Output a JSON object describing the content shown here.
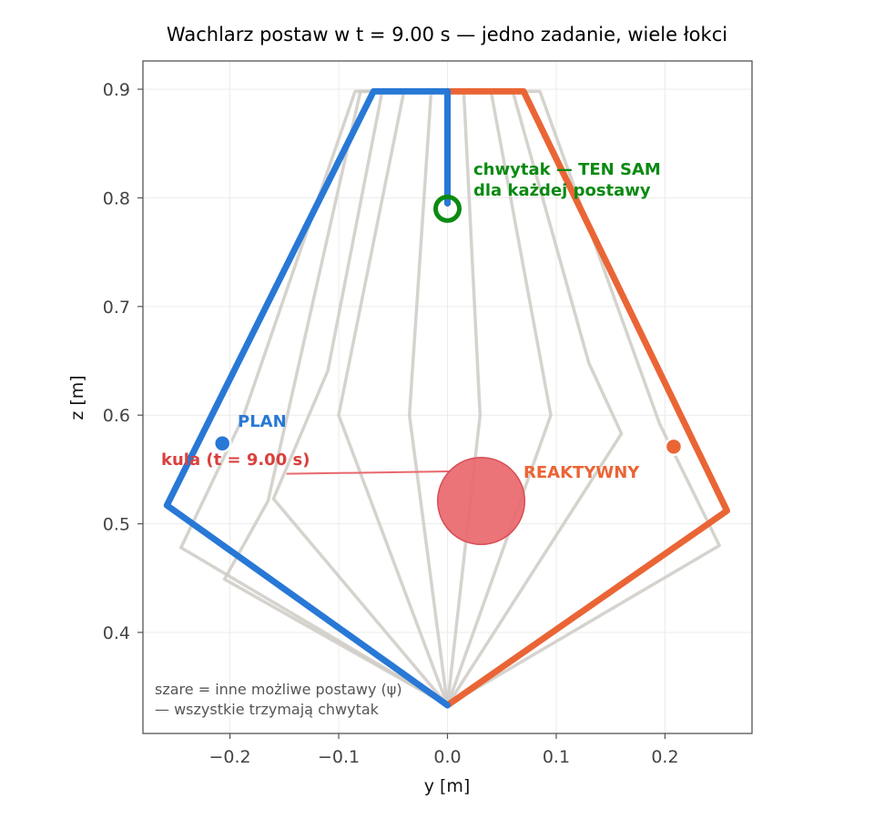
{
  "chart_data": {
    "type": "line",
    "title": "Wachlarz postaw w t = 9.00 s — jedno zadanie, wiele łokci",
    "xlabel": "y [m]",
    "ylabel": "z [m]",
    "xlim": [
      -0.28,
      0.28
    ],
    "ylim": [
      0.307,
      0.926
    ],
    "xticks": [
      -0.2,
      -0.1,
      0.0,
      0.1,
      0.2
    ],
    "xtick_labels": [
      "−0.2",
      "−0.1",
      "0.0",
      "0.1",
      "0.2"
    ],
    "yticks": [
      0.4,
      0.5,
      0.6,
      0.7,
      0.8,
      0.9
    ],
    "ytick_labels": [
      "0.4",
      "0.5",
      "0.6",
      "0.7",
      "0.8",
      "0.9"
    ],
    "grid": true,
    "colors": {
      "plan": "#2878d6",
      "reactive": "#ea6535",
      "gray": "#cfcbc6",
      "gripper": "#0b8a12",
      "ball": "#e8686c",
      "ball_edge": "#d94c55",
      "ball_label": "#d9413d"
    },
    "gray_postures": [
      [
        [
          0.0,
          0.333
        ],
        [
          -0.245,
          0.478
        ],
        [
          -0.188,
          0.598
        ],
        [
          -0.085,
          0.898
        ],
        [
          0.0,
          0.898
        ],
        [
          0.0,
          0.795
        ]
      ],
      [
        [
          0.0,
          0.333
        ],
        [
          -0.205,
          0.449
        ],
        [
          -0.165,
          0.521
        ],
        [
          -0.08,
          0.898
        ],
        [
          0.0,
          0.898
        ],
        [
          0.0,
          0.795
        ]
      ],
      [
        [
          0.0,
          0.333
        ],
        [
          -0.16,
          0.523
        ],
        [
          -0.11,
          0.641
        ],
        [
          -0.06,
          0.898
        ],
        [
          0.0,
          0.898
        ],
        [
          0.0,
          0.795
        ]
      ],
      [
        [
          0.0,
          0.333
        ],
        [
          -0.1,
          0.6
        ],
        [
          -0.04,
          0.898
        ],
        [
          0.0,
          0.898
        ],
        [
          0.0,
          0.795
        ]
      ],
      [
        [
          0.0,
          0.333
        ],
        [
          -0.035,
          0.6
        ],
        [
          -0.015,
          0.898
        ],
        [
          0.0,
          0.898
        ],
        [
          0.0,
          0.795
        ]
      ],
      [
        [
          0.0,
          0.333
        ],
        [
          0.03,
          0.6
        ],
        [
          0.015,
          0.898
        ],
        [
          0.0,
          0.898
        ],
        [
          0.0,
          0.795
        ]
      ],
      [
        [
          0.0,
          0.333
        ],
        [
          0.095,
          0.6
        ],
        [
          0.04,
          0.898
        ],
        [
          0.0,
          0.898
        ],
        [
          0.0,
          0.795
        ]
      ],
      [
        [
          0.0,
          0.333
        ],
        [
          0.16,
          0.583
        ],
        [
          0.13,
          0.648
        ],
        [
          0.06,
          0.898
        ],
        [
          0.0,
          0.898
        ],
        [
          0.0,
          0.795
        ]
      ],
      [
        [
          0.0,
          0.333
        ],
        [
          0.25,
          0.48
        ],
        [
          0.195,
          0.592
        ],
        [
          0.085,
          0.898
        ],
        [
          0.0,
          0.898
        ],
        [
          0.0,
          0.795
        ]
      ]
    ],
    "series": [
      {
        "name": "PLAN",
        "points": [
          [
            0.0,
            0.333
          ],
          [
            -0.258,
            0.517
          ],
          [
            -0.068,
            0.898
          ],
          [
            0.0,
            0.898
          ],
          [
            0.0,
            0.795
          ]
        ]
      },
      {
        "name": "REAKTYWNY",
        "points": [
          [
            0.0,
            0.333
          ],
          [
            0.257,
            0.512
          ],
          [
            0.07,
            0.898
          ],
          [
            0.0,
            0.898
          ],
          [
            0.0,
            0.795
          ]
        ]
      }
    ],
    "elbow_markers": [
      {
        "series": "PLAN",
        "point": [
          -0.207,
          0.574
        ]
      },
      {
        "series": "REAKTYWNY",
        "point": [
          0.208,
          0.571
        ]
      }
    ],
    "gripper": {
      "point": [
        0.0,
        0.79
      ]
    },
    "ball": {
      "center": [
        0.031,
        0.521
      ],
      "radius": 0.04
    },
    "annotations": {
      "gripper_label_line1": "chwytak — TEN SAM",
      "gripper_label_line2": "dla każdej postawy",
      "plan_label": "PLAN",
      "reactive_label": "REAKTYWNY",
      "ball_label": "kula (t = 9.00 s)",
      "note_line1": "szare = inne możliwe postawy (ψ)",
      "note_line2": "— wszystkie trzymają chwytak"
    }
  }
}
